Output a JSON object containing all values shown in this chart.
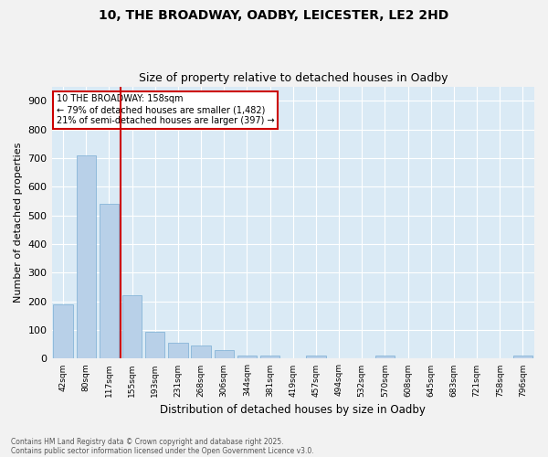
{
  "title_line1": "10, THE BROADWAY, OADBY, LEICESTER, LE2 2HD",
  "title_line2": "Size of property relative to detached houses in Oadby",
  "xlabel": "Distribution of detached houses by size in Oadby",
  "ylabel": "Number of detached properties",
  "categories": [
    "42sqm",
    "80sqm",
    "117sqm",
    "155sqm",
    "193sqm",
    "231sqm",
    "268sqm",
    "306sqm",
    "344sqm",
    "381sqm",
    "419sqm",
    "457sqm",
    "494sqm",
    "532sqm",
    "570sqm",
    "608sqm",
    "645sqm",
    "683sqm",
    "721sqm",
    "758sqm",
    "796sqm"
  ],
  "values": [
    190,
    710,
    540,
    220,
    95,
    55,
    45,
    30,
    10,
    10,
    0,
    10,
    0,
    0,
    10,
    0,
    0,
    0,
    0,
    0,
    10
  ],
  "bar_color": "#b8d0e8",
  "bar_edge_color": "#7aadd4",
  "plot_bg_color": "#daeaf5",
  "fig_bg_color": "#f2f2f2",
  "grid_color": "#ffffff",
  "vline_color": "#cc0000",
  "annotation_line1": "10 THE BROADWAY: 158sqm",
  "annotation_line2": "← 79% of detached houses are smaller (1,482)",
  "annotation_line3": "21% of semi-detached houses are larger (397) →",
  "annotation_box_color": "#cc0000",
  "ylim": [
    0,
    950
  ],
  "yticks": [
    0,
    100,
    200,
    300,
    400,
    500,
    600,
    700,
    800,
    900
  ],
  "footer_line1": "Contains HM Land Registry data © Crown copyright and database right 2025.",
  "footer_line2": "Contains public sector information licensed under the Open Government Licence v3.0."
}
